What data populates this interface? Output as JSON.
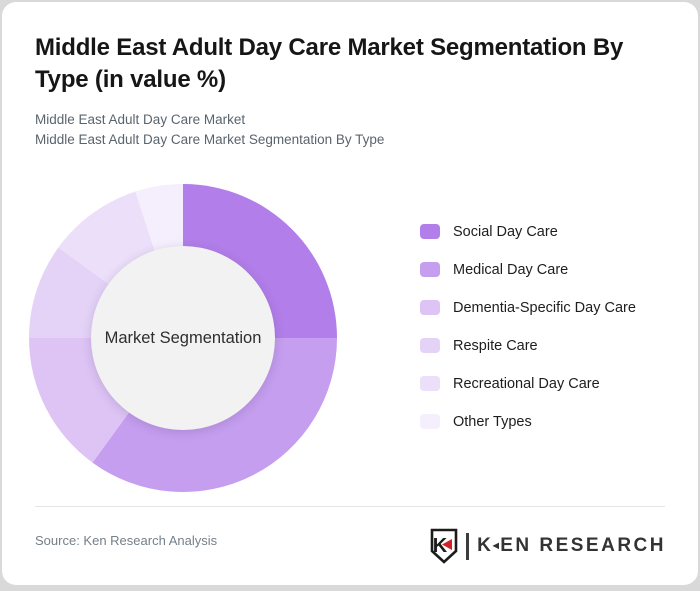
{
  "header": {
    "title_line1": "Middle East Adult Day Care Market Segmentation By",
    "title_line2": "Type (in value %)",
    "subtitle_line1": "Middle East Adult Day Care Market",
    "subtitle_line2": "Middle East Adult Day Care Market Segmentation By Type"
  },
  "chart_data": {
    "type": "pie",
    "donut": true,
    "title": "Middle East Adult Day Care Market Segmentation By Type (in value %)",
    "center_label": "Market Segmentation",
    "center_fill": "#f2f2f3",
    "start_angle_deg": 0,
    "direction": "clockwise",
    "legend_position": "right",
    "outer_radius_px": 154,
    "inner_radius_px": 92,
    "grid": false,
    "segments": [
      {
        "label": "Social Day Care",
        "value": 25,
        "color": "#b27ee9"
      },
      {
        "label": "Medical Day Care",
        "value": 35,
        "color": "#c59eef"
      },
      {
        "label": "Dementia-Specific Day Care",
        "value": 15,
        "color": "#ddc4f5"
      },
      {
        "label": "Respite Care",
        "value": 10,
        "color": "#e4d3f7"
      },
      {
        "label": "Recreational Day Care",
        "value": 10,
        "color": "#ecdffa"
      },
      {
        "label": "Other Types",
        "value": 5,
        "color": "#f5effd"
      }
    ]
  },
  "footer": {
    "source": "Source: Ken Research Analysis",
    "logo": {
      "shield_letter": "K",
      "wordmark_k": "K",
      "wordmark_rest": "EN RESEARCH",
      "triangle_icon": "◄",
      "accent_color": "#cf2128"
    }
  }
}
